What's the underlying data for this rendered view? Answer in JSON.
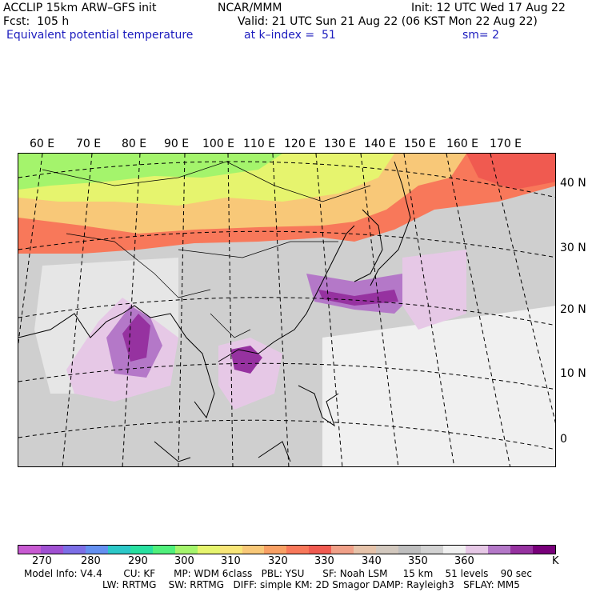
{
  "header": {
    "left_line1": "ACCLIP 15km ARW–GFS init",
    "left_line2": "Fcst:  105 h",
    "center_line1": "NCAR/MMM",
    "init": "Init: 12 UTC Wed 17 Aug 22",
    "valid": "Valid: 21 UTC Sun 21 Aug 22 (06 KST Mon 22 Aug 22)",
    "field": "Equivalent potential temperature",
    "level": "at k–index =  51",
    "smoothing": "sm= 2"
  },
  "map": {
    "longitude_labels": [
      "60 E",
      "70 E",
      "80 E",
      "90 E",
      "100 E",
      "110 E",
      "120 E",
      "130 E",
      "140 E",
      "150 E",
      "160 E",
      "170 E"
    ],
    "latitude_labels": [
      "40 N",
      "30 N",
      "20 N",
      "10 N",
      "0"
    ]
  },
  "colorbar": {
    "unit": "K",
    "colors": [
      "#c85ad2",
      "#a050d2",
      "#7c6ee6",
      "#6490f0",
      "#2cc8c8",
      "#28e0a0",
      "#50f07c",
      "#a4f46c",
      "#e6f46e",
      "#f8e678",
      "#f8c878",
      "#f8a064",
      "#f8785a",
      "#f05a50",
      "#f0a088",
      "#e6c3aa",
      "#d2c8be",
      "#bebebe",
      "#d2d2d2",
      "#f0f0f0",
      "#e6c8e6",
      "#b478c8",
      "#9632a0",
      "#78007a"
    ],
    "labels": [
      "270",
      "280",
      "290",
      "300",
      "310",
      "320",
      "330",
      "340",
      "350",
      "360"
    ]
  },
  "footer": {
    "line1": "Model Info: V4.4       CU: KF      MP: WDM 6class   PBL: YSU      SF: Noah LSM     15 km    51 levels    90 sec",
    "line2": "LW: RRTMG    SW: RRTMG   DIFF: simple KM: 2D Smagor DAMP: Rayleigh3   SFLAY: MM5"
  }
}
